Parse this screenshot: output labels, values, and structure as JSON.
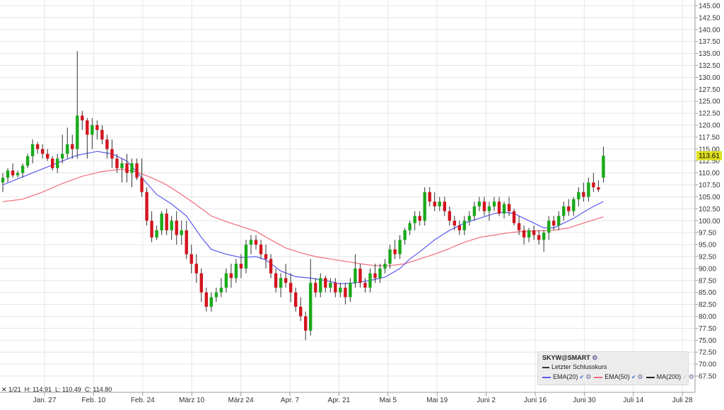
{
  "chart_data": {
    "type": "candlestick",
    "x_ticks": [
      "Jan. 27",
      "Feb. 10",
      "Feb. 24",
      "März 10",
      "März 24",
      "Apr. 7",
      "Apr. 21",
      "Mai 5",
      "Mai 19",
      "Juni 2",
      "Juni 16",
      "Juni 30",
      "Juli 14",
      "Juli 28"
    ],
    "y_ticks": [
      "145.00",
      "142.50",
      "140.00",
      "137.50",
      "135.00",
      "132.50",
      "130.00",
      "127.50",
      "125.00",
      "122.50",
      "120.00",
      "117.50",
      "115.00",
      "112.50",
      "110.00",
      "107.50",
      "105.00",
      "102.50",
      "100.00",
      "97.50",
      "95.00",
      "92.50",
      "90.00",
      "87.50",
      "85.00",
      "82.50",
      "80.00",
      "77.50",
      "75.00",
      "72.50",
      "70.00",
      "67.50"
    ],
    "ylim": [
      67.5,
      145
    ],
    "last_price": "113.61",
    "colors": {
      "up": "#1aaa1a",
      "down": "#d4141e",
      "ema20": "#5a5af0",
      "ema50": "#f06a7a"
    },
    "candles": [
      [
        108,
        110,
        106,
        109
      ],
      [
        109,
        111,
        108,
        110.5
      ],
      [
        110.5,
        112,
        109,
        109.5
      ],
      [
        109.5,
        110.5,
        109,
        110
      ],
      [
        110,
        112,
        109,
        111.5
      ],
      [
        111.5,
        114,
        111,
        113.5
      ],
      [
        113.5,
        117,
        112,
        116
      ],
      [
        116,
        116.5,
        114,
        115
      ],
      [
        115,
        116,
        113,
        114
      ],
      [
        114,
        115,
        112.5,
        113
      ],
      [
        113,
        113.5,
        110.5,
        111
      ],
      [
        111,
        114,
        110,
        113
      ],
      [
        113,
        118,
        112,
        114
      ],
      [
        114,
        119.5,
        113,
        116
      ],
      [
        116,
        118,
        113,
        115
      ],
      [
        115,
        135.5,
        113,
        122
      ],
      [
        122,
        123,
        119,
        121
      ],
      [
        121,
        121.5,
        113,
        118
      ],
      [
        118,
        121.5,
        115,
        120
      ],
      [
        120,
        121,
        117,
        119
      ],
      [
        119,
        120,
        116,
        117
      ],
      [
        117,
        118,
        113,
        115
      ],
      [
        115,
        117,
        111,
        113
      ],
      [
        113,
        114,
        110,
        111
      ],
      [
        111,
        113,
        108,
        112
      ],
      [
        112,
        114,
        108,
        110
      ],
      [
        110,
        113,
        107,
        112
      ],
      [
        112,
        113,
        108.5,
        109
      ],
      [
        109,
        113,
        105,
        106
      ],
      [
        106,
        107,
        99,
        100
      ],
      [
        100,
        102,
        95.5,
        96.5
      ],
      [
        96.5,
        99,
        96,
        98
      ],
      [
        98,
        102,
        97,
        101.5
      ],
      [
        101.5,
        102.5,
        97,
        98
      ],
      [
        98,
        101,
        96,
        100
      ],
      [
        100,
        102,
        95,
        97
      ],
      [
        97,
        100,
        95,
        98
      ],
      [
        98,
        100,
        92,
        93
      ],
      [
        93,
        95,
        89,
        91
      ],
      [
        91,
        93,
        87,
        89
      ],
      [
        89,
        90,
        83,
        85
      ],
      [
        85,
        86,
        81,
        82
      ],
      [
        82,
        85,
        81,
        84
      ],
      [
        84,
        86,
        83,
        85
      ],
      [
        85,
        88,
        84,
        86
      ],
      [
        86,
        90,
        85,
        89
      ],
      [
        89,
        91,
        86,
        88
      ],
      [
        88,
        92,
        87,
        91
      ],
      [
        91,
        93,
        88,
        90
      ],
      [
        90,
        96,
        89,
        95
      ],
      [
        95,
        97,
        93,
        96
      ],
      [
        96,
        97,
        94,
        95
      ],
      [
        95,
        96,
        92,
        93
      ],
      [
        93,
        95,
        90,
        92
      ],
      [
        92,
        93,
        88,
        89
      ],
      [
        89,
        90,
        85,
        86
      ],
      [
        86,
        89,
        84,
        88
      ],
      [
        88,
        91,
        86,
        87
      ],
      [
        87,
        89,
        83,
        85
      ],
      [
        85,
        86,
        81,
        82
      ],
      [
        82,
        84,
        79,
        80
      ],
      [
        80,
        81,
        75,
        77
      ],
      [
        77,
        92,
        76,
        87
      ],
      [
        87,
        88,
        84,
        85
      ],
      [
        85,
        89,
        84,
        88
      ],
      [
        88,
        88.5,
        85,
        86
      ],
      [
        86,
        88,
        85,
        87
      ],
      [
        87,
        88,
        84,
        85
      ],
      [
        85,
        87,
        84,
        86
      ],
      [
        86,
        87,
        82.5,
        84
      ],
      [
        84,
        88,
        83,
        87
      ],
      [
        87,
        93,
        86,
        90
      ],
      [
        90,
        91,
        86,
        87
      ],
      [
        87,
        88,
        85,
        86
      ],
      [
        86,
        90,
        85,
        89
      ],
      [
        89,
        91,
        87,
        88
      ],
      [
        88,
        91,
        87,
        90
      ],
      [
        90,
        92,
        89,
        91
      ],
      [
        91,
        95,
        90,
        94
      ],
      [
        94,
        96,
        92,
        93
      ],
      [
        93,
        97,
        92,
        96
      ],
      [
        96,
        98.5,
        95,
        98
      ],
      [
        98,
        100,
        97,
        99.5
      ],
      [
        99.5,
        102,
        98,
        101
      ],
      [
        101,
        102,
        99,
        100
      ],
      [
        100,
        107,
        99,
        106
      ],
      [
        106,
        107,
        103,
        104
      ],
      [
        104,
        106,
        102,
        103
      ],
      [
        103,
        105,
        102,
        104
      ],
      [
        104,
        105,
        101,
        102
      ],
      [
        102,
        103,
        99,
        100
      ],
      [
        100,
        101,
        98,
        99
      ],
      [
        99,
        100,
        97,
        98
      ],
      [
        98,
        101,
        97,
        100
      ],
      [
        100,
        102,
        99,
        101
      ],
      [
        101,
        104,
        100,
        103
      ],
      [
        103,
        105,
        102,
        104
      ],
      [
        104,
        105,
        101,
        102
      ],
      [
        102,
        104,
        100,
        103
      ],
      [
        103,
        105,
        102,
        104
      ],
      [
        104,
        105,
        101,
        101.5
      ],
      [
        101.5,
        104,
        100.5,
        103.5
      ],
      [
        103.5,
        105,
        101,
        102
      ],
      [
        102,
        102.5,
        99,
        99.5
      ],
      [
        99.5,
        101,
        97,
        98
      ],
      [
        98,
        99,
        95,
        96.5
      ],
      [
        96.5,
        98.5,
        95.5,
        98
      ],
      [
        98,
        99,
        96,
        97
      ],
      [
        97,
        98,
        95,
        96
      ],
      [
        96,
        98,
        93.5,
        97.5
      ],
      [
        97.5,
        101,
        96,
        100
      ],
      [
        100,
        101,
        98,
        99
      ],
      [
        99,
        102,
        98,
        101
      ],
      [
        101,
        104,
        100,
        103
      ],
      [
        103,
        104.5,
        101,
        102
      ],
      [
        102,
        105,
        101,
        104.5
      ],
      [
        104.5,
        107,
        103,
        106
      ],
      [
        106,
        108,
        104,
        105
      ],
      [
        105,
        109,
        104,
        108
      ],
      [
        108,
        110,
        106,
        107
      ],
      [
        107,
        108.5,
        106,
        106.5
      ],
      [
        109,
        115.5,
        108,
        113.6
      ]
    ],
    "ema20": [
      [
        0,
        107.5
      ],
      [
        6,
        110
      ],
      [
        12,
        112.5
      ],
      [
        15,
        113.7
      ],
      [
        19,
        114.5
      ],
      [
        22,
        114
      ],
      [
        25,
        112.5
      ],
      [
        28,
        109
      ],
      [
        31,
        105.5
      ],
      [
        34,
        103.5
      ],
      [
        37,
        101
      ],
      [
        40,
        96.5
      ],
      [
        42,
        94
      ],
      [
        45,
        93
      ],
      [
        48,
        92.3
      ],
      [
        51,
        92.5
      ],
      [
        53,
        91.8
      ],
      [
        56,
        89.5
      ],
      [
        59,
        88.3
      ],
      [
        62,
        88
      ],
      [
        65,
        87.5
      ],
      [
        68,
        86.8
      ],
      [
        71,
        87
      ],
      [
        74,
        87.5
      ],
      [
        77,
        88.2
      ],
      [
        80,
        90
      ],
      [
        82,
        92
      ],
      [
        84,
        93.5
      ],
      [
        87,
        96
      ],
      [
        90,
        98
      ],
      [
        93,
        99.5
      ],
      [
        96,
        100.5
      ],
      [
        99,
        101.5
      ],
      [
        101,
        101.8
      ],
      [
        103,
        101.5
      ],
      [
        105,
        100.5
      ],
      [
        107,
        99.5
      ],
      [
        109,
        98.5
      ],
      [
        111,
        98.5
      ],
      [
        113,
        99.5
      ],
      [
        115,
        100.5
      ],
      [
        117,
        101.8
      ],
      [
        119,
        103
      ],
      [
        121,
        104
      ]
    ],
    "ema50": [
      [
        0,
        104
      ],
      [
        4,
        104.5
      ],
      [
        8,
        106
      ],
      [
        12,
        107.8
      ],
      [
        16,
        109.3
      ],
      [
        20,
        110.3
      ],
      [
        24,
        110.8
      ],
      [
        27,
        110.2
      ],
      [
        30,
        109
      ],
      [
        33,
        107.5
      ],
      [
        36,
        105.5
      ],
      [
        39,
        103.3
      ],
      [
        42,
        101
      ],
      [
        45,
        99.8
      ],
      [
        48,
        98.8
      ],
      [
        51,
        97.8
      ],
      [
        54,
        96
      ],
      [
        57,
        94.3
      ],
      [
        60,
        93.3
      ],
      [
        63,
        92.5
      ],
      [
        66,
        92
      ],
      [
        69,
        91.5
      ],
      [
        72,
        91
      ],
      [
        75,
        90.6
      ],
      [
        78,
        90.6
      ],
      [
        81,
        91
      ],
      [
        84,
        92
      ],
      [
        87,
        93
      ],
      [
        90,
        94.2
      ],
      [
        93,
        95.5
      ],
      [
        96,
        96.5
      ],
      [
        99,
        97
      ],
      [
        102,
        97.5
      ],
      [
        105,
        97.8
      ],
      [
        108,
        97.9
      ],
      [
        111,
        98
      ],
      [
        114,
        98.5
      ],
      [
        117,
        99.5
      ],
      [
        120,
        100.5
      ],
      [
        121,
        100.8
      ]
    ]
  },
  "legend": {
    "title": "SKYW@SMART",
    "last_close_label": "Letzter Schlusskurs",
    "ema20_label": "EMA(20)",
    "ema50_label": "EMA(50)",
    "ma200_label": "MA(200)"
  },
  "info": {
    "date": "1/21",
    "high": "H: 114.91",
    "low": "L: 110.49",
    "close": "C: 114.80"
  }
}
